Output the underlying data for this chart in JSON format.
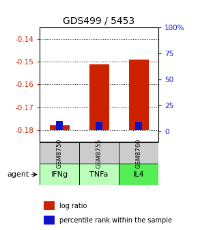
{
  "title": "GDS499 / 5453",
  "samples": [
    "GSM8750",
    "GSM8755",
    "GSM8760"
  ],
  "agents": [
    "IFNg",
    "TNFa",
    "IL4"
  ],
  "log_ratios": [
    -0.178,
    -0.151,
    -0.149
  ],
  "percentile_ranks_pct": [
    8,
    7,
    7
  ],
  "bar_bottom": -0.18,
  "ylim": [
    -0.185,
    -0.135
  ],
  "yticks": [
    -0.18,
    -0.17,
    -0.16,
    -0.15,
    -0.14
  ],
  "ytick_labels": [
    "-0.18",
    "-0.17",
    "-0.16",
    "-0.15",
    "-0.14"
  ],
  "right_ytick_pcts": [
    0,
    25,
    50,
    75,
    100
  ],
  "right_ytick_labels": [
    "0",
    "25",
    "50",
    "75",
    "100%"
  ],
  "bar_color": "#cc2200",
  "percentile_color": "#1111cc",
  "left_tick_color": "#cc2200",
  "right_tick_color": "#1111cc",
  "sample_bg_color": "#cccccc",
  "agent_bg_colors": [
    "#bbffbb",
    "#bbffbb",
    "#55ee55"
  ],
  "legend_bar_label": "log ratio",
  "legend_pct_label": "percentile rank within the sample",
  "agent_label": "agent"
}
